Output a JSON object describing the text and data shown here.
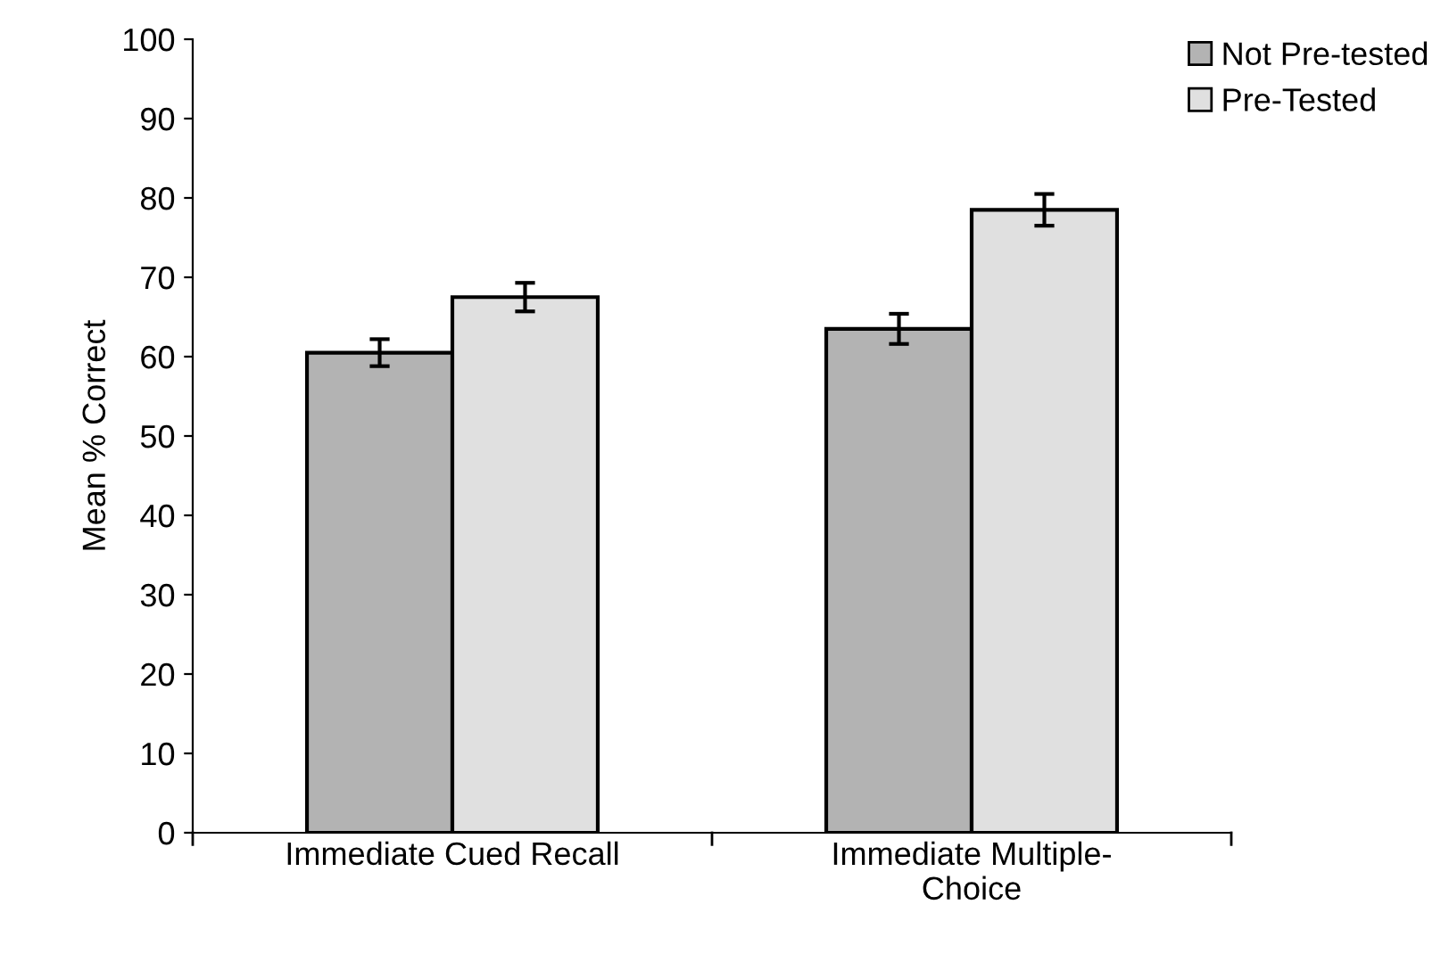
{
  "chart_data": {
    "type": "bar",
    "ylabel": "Mean % Correct",
    "categories": [
      "Immediate Cued Recall",
      "Immediate Multiple-\nChoice"
    ],
    "series": [
      {
        "name": "Not Pre-tested",
        "color": "#b3b3b3",
        "values": [
          60.5,
          63.5
        ],
        "errors": [
          1.7,
          1.9
        ]
      },
      {
        "name": "Pre-Tested",
        "color": "#e0e0e0",
        "values": [
          67.5,
          78.5
        ],
        "errors": [
          1.8,
          2.0
        ]
      }
    ],
    "ylim": [
      0,
      100
    ],
    "yticks": [
      0,
      10,
      20,
      30,
      40,
      50,
      60,
      70,
      80,
      90,
      100
    ],
    "grid": false,
    "legend": "top right"
  }
}
